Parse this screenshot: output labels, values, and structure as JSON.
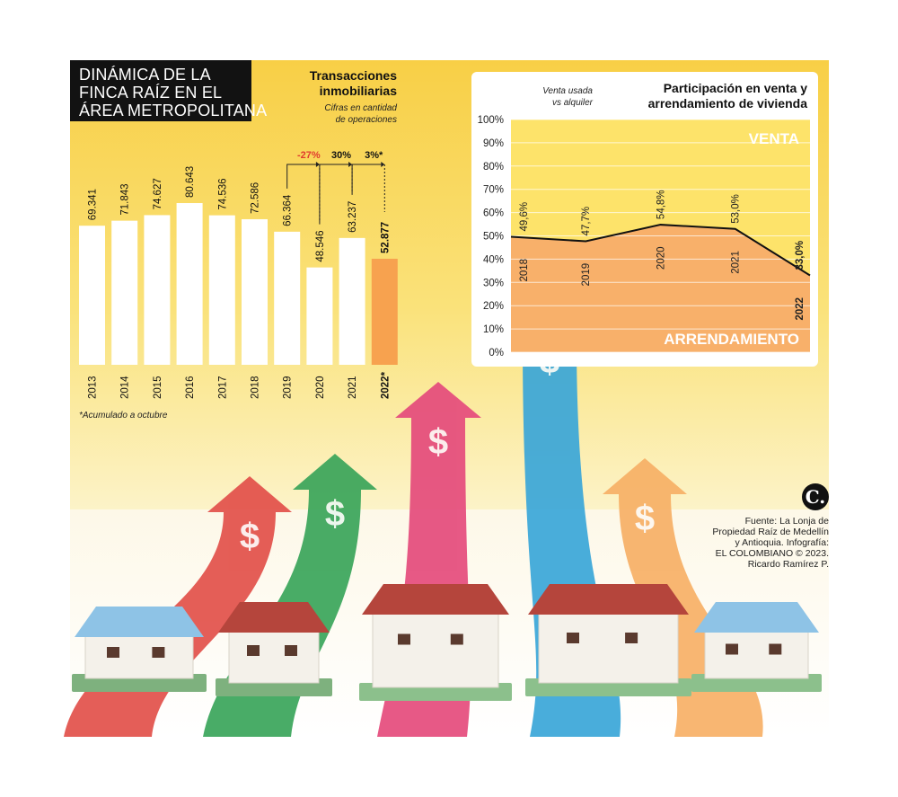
{
  "title_lines": [
    "DINÁMICA DE LA",
    "FINCA RAÍZ EN EL",
    "ÁREA METROPOLITANA"
  ],
  "transactions": {
    "title_lines": [
      "Transacciones",
      "inmobiliarias"
    ],
    "subtitle_lines": [
      "Cifras en cantidad",
      "de operaciones"
    ],
    "footnote": "*Acumulado a octubre"
  },
  "participation": {
    "title_lines": [
      "Participación en venta y",
      "arrendamiento de vivienda"
    ],
    "subtitle_lines": [
      "Venta usada",
      "vs alquiler"
    ]
  },
  "source_lines": [
    "Fuente: La Lonja de",
    "Propiedad Raíz de Medellín",
    "y Antioquia. Infografía:",
    "EL COLOMBIANO © 2023.",
    "Ricardo Ramírez P."
  ],
  "logo_text": "C.",
  "colors": {
    "background_yellow": "#f9dc5c",
    "bar_white": "#ffffff",
    "bar_highlight": "#f7a24f",
    "negative_red": "#e03b2e",
    "venta_area": "#fde36a",
    "arrendamiento_area": "#f8b06a",
    "arrow_red": "#e2504a",
    "arrow_green": "#3aa55a",
    "arrow_pink": "#e54b7c",
    "arrow_blue": "#3aa6d8",
    "arrow_orange": "#f7b066"
  },
  "chart_data": [
    {
      "type": "bar",
      "title": "Transacciones inmobiliarias",
      "subtitle": "Cifras en cantidad de operaciones",
      "categories": [
        "2013",
        "2014",
        "2015",
        "2016",
        "2017",
        "2018",
        "2019",
        "2020",
        "2021",
        "2022*"
      ],
      "values": [
        69341,
        71843,
        74627,
        80643,
        74536,
        72586,
        66364,
        48546,
        63237,
        52877
      ],
      "value_labels": [
        "69.341",
        "71.843",
        "74.627",
        "80.643",
        "74.536",
        "72.586",
        "66.364",
        "48.546",
        "63.237",
        "52.877"
      ],
      "highlight_index": 9,
      "annotations": [
        {
          "label": "-27%",
          "from": "2019",
          "to": "2020",
          "color": "#e03b2e"
        },
        {
          "label": "30%",
          "from": "2020",
          "to": "2021",
          "color": "#111111"
        },
        {
          "label": "3%*",
          "from": "2021",
          "to": "2022*",
          "color": "#111111"
        }
      ],
      "ylim": [
        0,
        100000
      ],
      "grid": false,
      "footnote": "*Acumulado a octubre"
    },
    {
      "type": "area",
      "title": "Participación en venta y arrendamiento de vivienda",
      "subtitle": "Venta usada vs alquiler",
      "x": [
        "2018",
        "2019",
        "2020",
        "2021",
        "2022"
      ],
      "series": [
        {
          "name": "ARRENDAMIENTO",
          "values": [
            49.6,
            47.7,
            54.8,
            53.0,
            33.0
          ],
          "labels": [
            "49,6%",
            "47,7%",
            "54,8%",
            "53,0%",
            "33,0%"
          ]
        },
        {
          "name": "VENTA",
          "values": [
            50.4,
            52.3,
            45.2,
            47.0,
            67.0
          ]
        }
      ],
      "yticks": [
        "0%",
        "10%",
        "20%",
        "30%",
        "40%",
        "50%",
        "60%",
        "70%",
        "80%",
        "90%",
        "100%"
      ],
      "ylim": [
        0,
        100
      ],
      "grid": true
    }
  ]
}
